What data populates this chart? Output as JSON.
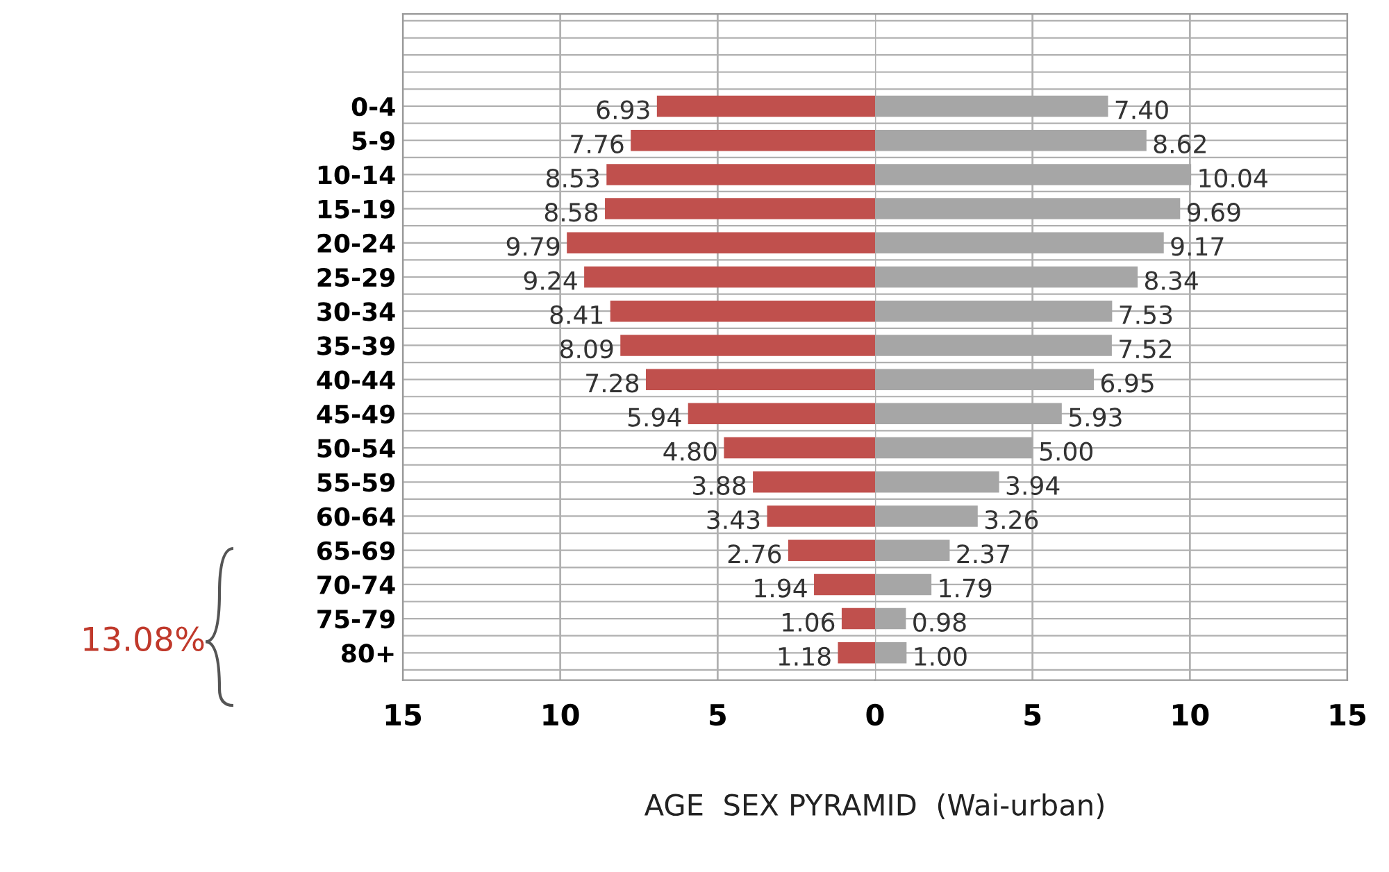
{
  "chart_data": [
    {
      "type": "bar",
      "orientation": "horizontal",
      "categories": [
        "0-4",
        "5-9",
        "10-14",
        "15-19",
        "20-24",
        "25-29",
        "30-34",
        "35-39",
        "40-44",
        "45-49",
        "50-54",
        "55-59",
        "60-64",
        "65-69",
        "70-74",
        "75-79",
        "80+"
      ],
      "series": [
        {
          "color": "#c0504d",
          "values": [
            6.93,
            7.76,
            8.53,
            8.58,
            9.79,
            9.24,
            8.41,
            8.09,
            7.28,
            5.94,
            4.8,
            3.88,
            3.43,
            2.76,
            1.94,
            1.06,
            1.18
          ],
          "value_labels": [
            "6.93",
            "7.76",
            "8.53",
            "8.58",
            "9.79",
            "9.24",
            "8.41",
            "8.09",
            "7.28",
            "5.94",
            "4.80",
            "3.88",
            "3.43",
            "2.76",
            "1.94",
            "1.06",
            "1.18"
          ]
        }
      ],
      "xlim": [
        15,
        0
      ],
      "xticks": [
        15,
        10,
        5
      ],
      "grid": true,
      "annotations": [
        "13.08%"
      ]
    },
    {
      "type": "bar",
      "orientation": "horizontal",
      "categories": [
        null,
        null,
        null,
        null,
        null,
        null,
        null,
        null,
        null,
        null,
        null,
        null,
        null,
        null,
        null,
        null,
        null
      ],
      "series": [
        {
          "color": "#a6a6a6",
          "values": [
            7.4,
            8.62,
            10.04,
            9.69,
            9.17,
            8.34,
            7.53,
            7.52,
            6.95,
            5.93,
            5.0,
            3.94,
            3.26,
            2.37,
            1.79,
            0.98,
            1.0
          ],
          "value_labels": [
            "7.40",
            "8.62",
            "10.04",
            "9.69",
            "9.17",
            "8.34",
            "7.53",
            "7.52",
            "6.95",
            "5.93",
            "5.00",
            "3.94",
            "3.26",
            "2.37",
            "1.79",
            "0.98",
            "1.00"
          ]
        }
      ],
      "xlim": [
        0,
        15
      ],
      "xticks": [
        0,
        5,
        10,
        15
      ],
      "grid": true,
      "xlabel": "AGE  SEX PYRAMID  (Wai-urban)"
    }
  ]
}
